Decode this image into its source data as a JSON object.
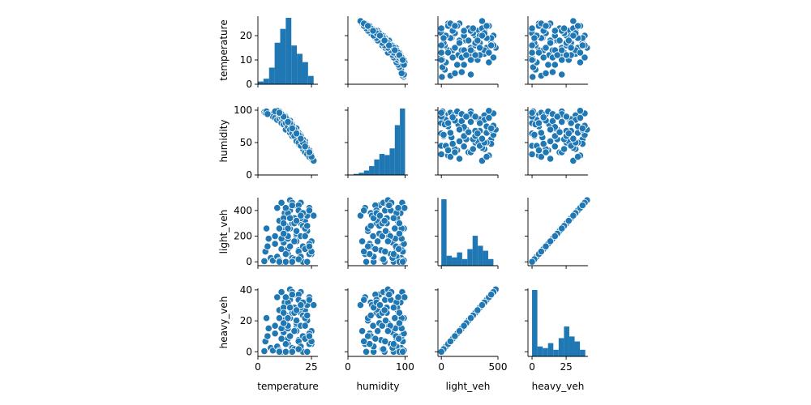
{
  "chart_data": {
    "type": "scatter",
    "subtype": "pairplot",
    "variables": [
      "temperature",
      "humidity",
      "light_veh",
      "heavy_veh"
    ],
    "axes": {
      "temperature": {
        "lim": [
          0,
          28
        ],
        "ticks": [
          0,
          10,
          20
        ],
        "bottom_ticks": [
          0,
          25
        ],
        "label": "temperature"
      },
      "humidity": {
        "lim": [
          0,
          105
        ],
        "ticks": [
          0,
          50,
          100
        ],
        "bottom_ticks": [
          0,
          100
        ],
        "label": "humidity"
      },
      "light_veh": {
        "lim": [
          -30,
          500
        ],
        "ticks": [
          0,
          200,
          400
        ],
        "bottom_ticks": [
          0,
          500
        ],
        "label": "light_veh"
      },
      "heavy_veh": {
        "lim": [
          -3,
          41
        ],
        "ticks": [
          0,
          20,
          40
        ],
        "bottom_ticks": [
          0,
          25
        ],
        "label": "heavy_veh"
      }
    },
    "histograms": {
      "temperature": {
        "bin_edges": [
          0,
          2.6,
          5.2,
          7.8,
          10.4,
          13.0,
          15.6,
          18.2,
          20.8,
          23.4,
          26.0
        ],
        "counts": [
          1,
          2,
          6,
          15,
          20,
          24,
          14,
          11,
          8,
          3
        ]
      },
      "humidity": {
        "bin_edges": [
          10,
          19,
          28,
          37,
          46,
          55,
          64,
          73,
          82,
          91,
          100
        ],
        "counts": [
          1,
          2,
          4,
          8,
          14,
          19,
          18,
          24,
          45,
          60
        ]
      },
      "light_veh": {
        "bin_edges": [
          0,
          46,
          92,
          138,
          184,
          230,
          276,
          322,
          368,
          414,
          460
        ],
        "counts": [
          40,
          6,
          5,
          8,
          4,
          10,
          18,
          12,
          9,
          4
        ]
      },
      "heavy_veh": {
        "bin_edges": [
          0,
          3.9,
          7.8,
          11.7,
          15.6,
          19.5,
          23.4,
          27.3,
          31.2,
          35.1,
          39.0
        ],
        "counts": [
          40,
          6,
          5,
          8,
          4,
          11,
          18,
          12,
          9,
          4
        ]
      }
    },
    "points": {
      "temperature": [
        3,
        3.5,
        5,
        6,
        4,
        7,
        8,
        4.5,
        9,
        10,
        11,
        12,
        12.5,
        13,
        14,
        15,
        15,
        16,
        17,
        18,
        19,
        20,
        21,
        22,
        23,
        24,
        25,
        26,
        11,
        13,
        14,
        16,
        18,
        20,
        22,
        24,
        10,
        12,
        15,
        17,
        19,
        21,
        23,
        25,
        13,
        14,
        15,
        16,
        17,
        18,
        19,
        20,
        21,
        22,
        23,
        24,
        9,
        10,
        11,
        12,
        13,
        14,
        15,
        16,
        17,
        18,
        19,
        20,
        8,
        12,
        16,
        20,
        24,
        14,
        18,
        22,
        11,
        15,
        19,
        23,
        13,
        17,
        21,
        25,
        12,
        16,
        20,
        24,
        10,
        14,
        18,
        22
      ],
      "humidity": [
        97,
        96,
        95,
        93,
        98,
        90,
        88,
        94,
        85,
        87,
        80,
        78,
        92,
        70,
        75,
        65,
        82,
        60,
        68,
        55,
        58,
        50,
        45,
        40,
        35,
        30,
        25,
        22,
        95,
        88,
        85,
        78,
        72,
        62,
        52,
        38,
        98,
        92,
        84,
        70,
        65,
        55,
        42,
        30,
        90,
        83,
        75,
        68,
        62,
        55,
        48,
        45,
        40,
        35,
        32,
        28,
        99,
        94,
        89,
        86,
        80,
        74,
        70,
        64,
        60,
        52,
        50,
        45,
        98,
        90,
        76,
        60,
        38,
        85,
        66,
        48,
        94,
        80,
        62,
        40,
        88,
        70,
        50,
        28,
        90,
        72,
        56,
        35,
        96,
        82,
        64,
        44
      ],
      "light_veh": [
        5,
        80,
        180,
        30,
        260,
        10,
        200,
        120,
        40,
        320,
        0,
        150,
        380,
        220,
        60,
        400,
        260,
        20,
        340,
        440,
        90,
        300,
        0,
        380,
        240,
        420,
        160,
        360,
        460,
        280,
        100,
        30,
        200,
        460,
        320,
        140,
        10,
        240,
        120,
        440,
        80,
        280,
        360,
        60,
        0,
        180,
        400,
        300,
        20,
        220,
        440,
        340,
        120,
        260,
        0,
        400,
        420,
        260,
        100,
        340,
        60,
        200,
        480,
        0,
        300,
        160,
        400,
        40,
        140,
        300,
        460,
        200,
        60,
        380,
        240,
        100,
        180,
        340,
        20,
        280,
        420,
        160,
        380,
        80,
        220,
        440,
        360,
        120,
        0,
        260,
        320,
        200
      ],
      "heavy_veh": [
        0.4,
        6.7,
        15.1,
        2.5,
        21.8,
        0.8,
        16.8,
        10.1,
        3.4,
        26.9,
        0,
        12.6,
        31.9,
        18.5,
        5,
        33.6,
        21.8,
        1.7,
        28.6,
        37,
        7.6,
        25.2,
        0,
        31.9,
        20.2,
        35.3,
        13.4,
        30.2,
        38.6,
        23.5,
        8.4,
        2.5,
        16.8,
        38.6,
        26.9,
        11.8,
        0.8,
        20.2,
        10.1,
        37,
        6.7,
        23.5,
        30.2,
        5,
        0,
        15.1,
        33.6,
        25.2,
        1.7,
        18.5,
        37,
        28.6,
        10.1,
        21.8,
        0,
        33.6,
        35.3,
        21.8,
        8.4,
        28.6,
        5,
        16.8,
        40.3,
        0,
        25.2,
        13.4,
        33.6,
        3.4,
        11.8,
        25.2,
        38.6,
        16.8,
        5,
        31.9,
        20.2,
        8.4,
        15.1,
        28.6,
        1.7,
        23.5,
        35.3,
        13.4,
        31.9,
        6.7,
        18.5,
        37,
        30.2,
        10.1,
        0,
        21.8,
        26.9,
        16.8
      ]
    },
    "marker_color": "#1f77b4",
    "bar_color": "#1f77b4",
    "marker_edge_color": "#ffffff",
    "grid": false,
    "legend": "none"
  }
}
